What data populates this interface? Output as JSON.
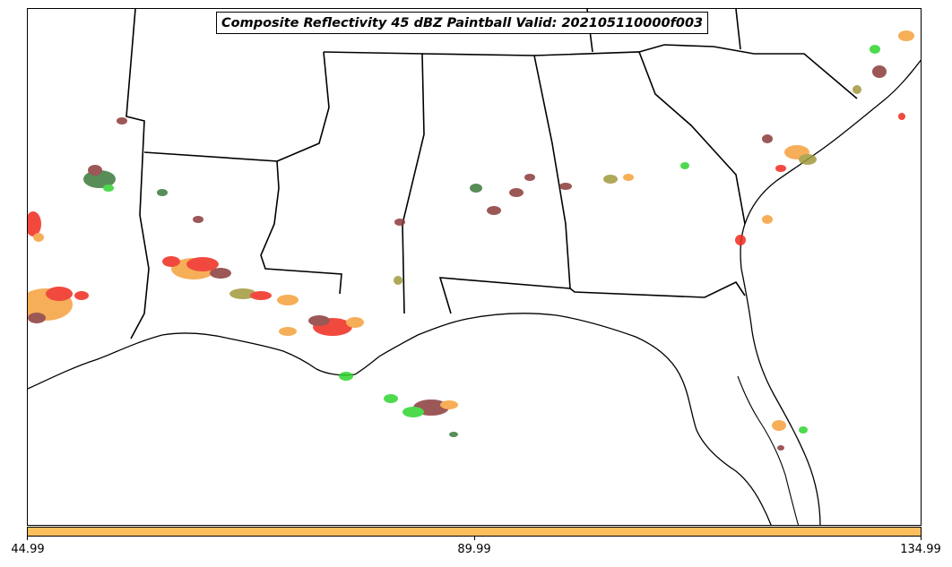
{
  "title": "Composite Reflectivity 45 dBZ Paintball Valid: 202105110000f003",
  "colorbar": {
    "color": "#fdbf5e",
    "ticks": [
      "44.99",
      "89.99",
      "134.99"
    ]
  },
  "palette": {
    "red": "#f02a1e",
    "orange": "#f5a03c",
    "green": "#2fd42f",
    "olive": "#a09a3c",
    "brown": "#8b3a3a",
    "dark_green": "#3c7a3c",
    "boundary": "#000000"
  },
  "map": {
    "region": "Southeastern United States",
    "legend": "none"
  }
}
